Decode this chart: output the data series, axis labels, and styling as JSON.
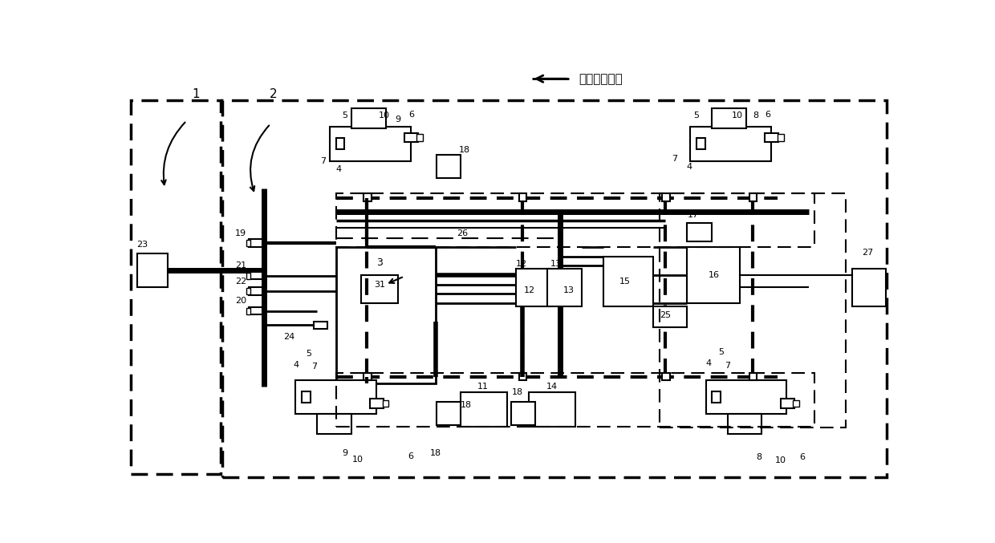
{
  "bg_color": "#ffffff",
  "line_color": "#000000",
  "direction_text": "车辆行驶方向"
}
